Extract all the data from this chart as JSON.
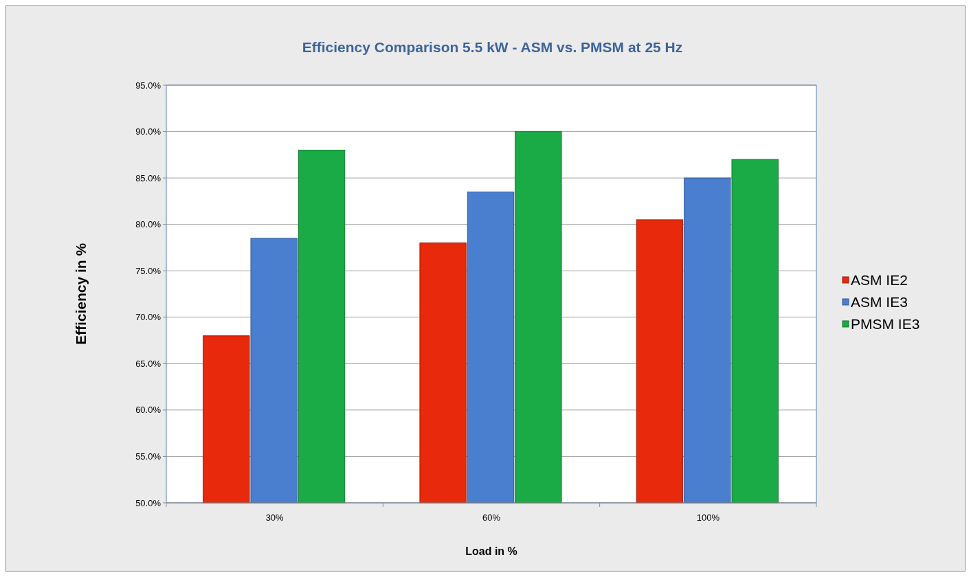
{
  "chart_data": {
    "type": "bar",
    "title": "Efficiency Comparison 5.5 kW - ASM vs. PMSM at 25 Hz",
    "xlabel": "Load in %",
    "ylabel": "Efficiency in %",
    "categories": [
      "30%",
      "60%",
      "100%"
    ],
    "series": [
      {
        "name": "ASM IE2",
        "color": "#e8290b",
        "values": [
          68,
          78,
          80.5
        ]
      },
      {
        "name": "ASM IE3",
        "color": "#4a7fd0",
        "values": [
          78.5,
          83.5,
          85
        ]
      },
      {
        "name": "PMSM IE3",
        "color": "#1aab46",
        "values": [
          88,
          90,
          87
        ]
      }
    ],
    "ylim": [
      50,
      95
    ],
    "yticks": [
      {
        "value": 50,
        "label": "50.0%"
      },
      {
        "value": 55,
        "label": "55.0%"
      },
      {
        "value": 60,
        "label": "60.0%"
      },
      {
        "value": 65,
        "label": "65.0%"
      },
      {
        "value": 70,
        "label": "70.0%"
      },
      {
        "value": 75,
        "label": "75.0%"
      },
      {
        "value": 80,
        "label": "80.0%"
      },
      {
        "value": 85,
        "label": "85.0%"
      },
      {
        "value": 90,
        "label": "90.0%"
      },
      {
        "value": 95,
        "label": "95.0%"
      }
    ],
    "grid": "y",
    "legend": "right"
  }
}
